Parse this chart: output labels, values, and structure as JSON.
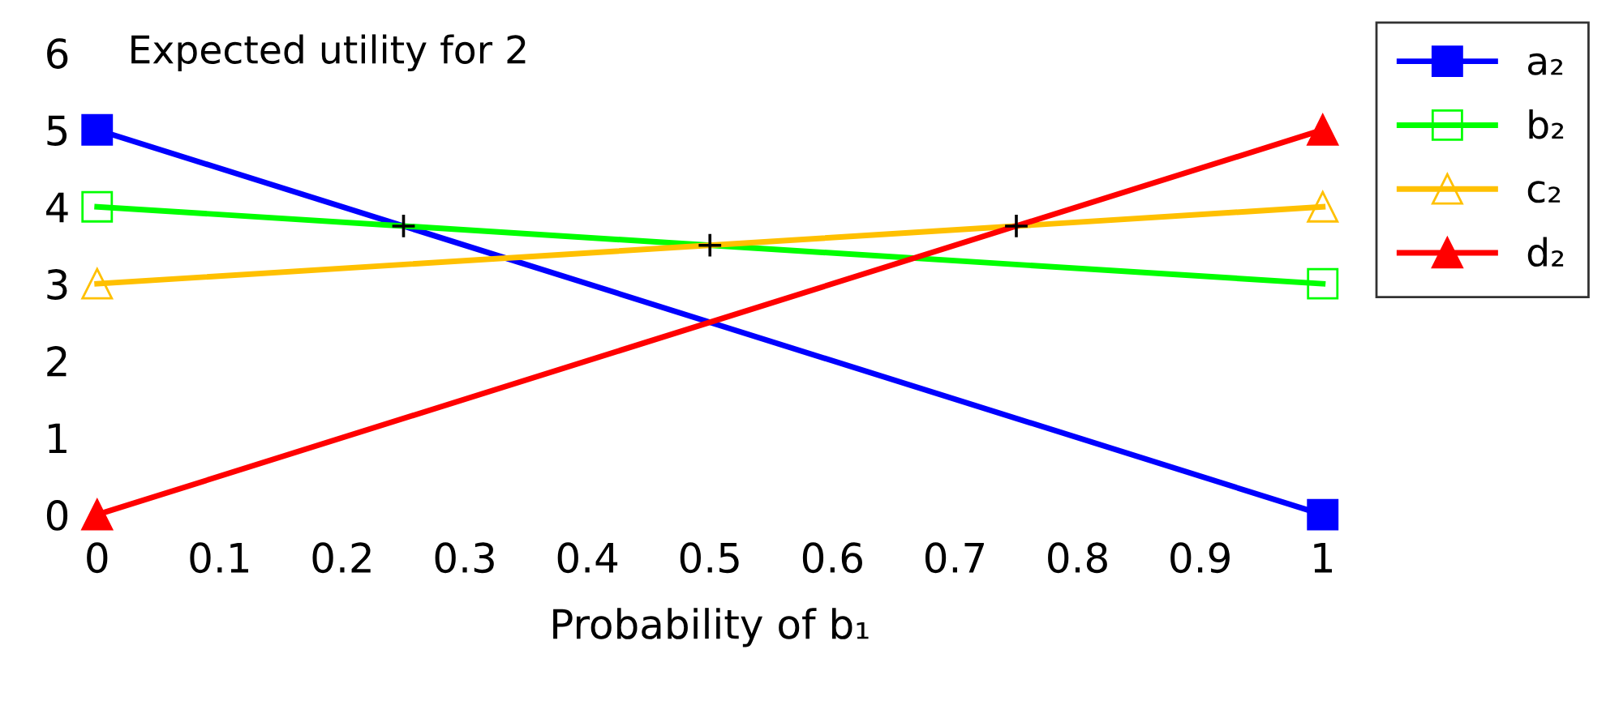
{
  "chart_data": {
    "type": "line",
    "title": "Expected utility for 2",
    "xlabel": "Probability of b₁",
    "x": [
      0,
      1
    ],
    "xlim": [
      0,
      1
    ],
    "xticks": [
      0,
      0.1,
      0.2,
      0.3,
      0.4,
      0.5,
      0.6,
      0.7,
      0.8,
      0.9,
      1
    ],
    "ylim": [
      0,
      6
    ],
    "yticks": [
      0,
      1,
      2,
      3,
      4,
      5,
      6
    ],
    "grid": false,
    "legend": "right",
    "series": [
      {
        "name": "a₂",
        "color": "#0000ff",
        "values": [
          5,
          0
        ],
        "marker": "square"
      },
      {
        "name": "b₂",
        "color": "#00ff00",
        "values": [
          4,
          3
        ],
        "marker": "square"
      },
      {
        "name": "c₂",
        "color": "#ffc000",
        "values": [
          3,
          4
        ],
        "marker": "triangle"
      },
      {
        "name": "d₂",
        "color": "#ff0000",
        "values": [
          0,
          5
        ],
        "marker": "triangle"
      },
      {
        "type": "scatter",
        "color": "#000000",
        "x": [
          0.25,
          0.5,
          0.75
        ],
        "values": [
          3.75,
          3.5,
          3.75
        ],
        "marker": "cross"
      }
    ]
  }
}
